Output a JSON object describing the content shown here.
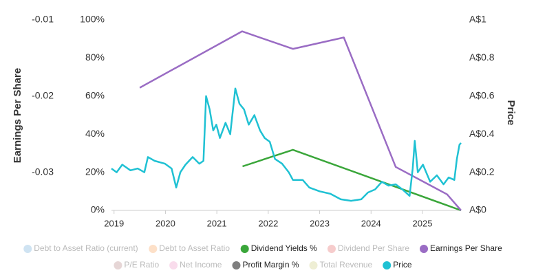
{
  "chart_data": {
    "type": "line",
    "y_title": "Earnings Per Share",
    "y2_title": "Price",
    "xlim": [
      2018.95,
      2025.75
    ],
    "xticks": [
      2019,
      2020,
      2021,
      2022,
      2023,
      2024,
      2025
    ],
    "ylim": [
      -0.035,
      -0.01
    ],
    "yticks": [
      -0.03,
      -0.02,
      -0.01
    ],
    "y3lim": [
      0,
      100
    ],
    "y3ticks": [
      {
        "value": 0,
        "label": "0%"
      },
      {
        "value": 20,
        "label": "20%"
      },
      {
        "value": 40,
        "label": "40%"
      },
      {
        "value": 60,
        "label": "60%"
      },
      {
        "value": 80,
        "label": "80%"
      },
      {
        "value": 100,
        "label": "100%"
      }
    ],
    "y2lim": [
      0,
      1
    ],
    "y2ticks": [
      {
        "value": 0,
        "label": "A$0"
      },
      {
        "value": 0.2,
        "label": "A$0.2"
      },
      {
        "value": 0.4,
        "label": "A$0.4"
      },
      {
        "value": 0.6,
        "label": "A$0.6"
      },
      {
        "value": 0.8,
        "label": "A$0.8"
      },
      {
        "value": 1,
        "label": "A$1"
      }
    ],
    "series": [
      {
        "name": "Debt to Asset Ratio (current)",
        "color": "#cfe3f2",
        "active": false
      },
      {
        "name": "Debt to Asset Ratio",
        "color": "#fde0c8",
        "active": false
      },
      {
        "name": "Dividend Yields %",
        "color": "#3aa63a",
        "active": true,
        "axis": "y3",
        "x": [
          2021.5,
          2022.48,
          2025.75
        ],
        "values": [
          23.1,
          31.8,
          0
        ]
      },
      {
        "name": "Dividend Per Share",
        "color": "#f6cccc",
        "active": false
      },
      {
        "name": "Earnings Per Share",
        "color": "#9a6cc4",
        "active": true,
        "axis": "y",
        "x": [
          2019.5,
          2021.49,
          2022.48,
          2023.47,
          2024.48,
          2025.48,
          2025.75
        ],
        "values": [
          -0.0189,
          -0.0115,
          -0.0138,
          -0.0123,
          -0.0293,
          -0.0329,
          -0.035
        ]
      },
      {
        "name": "P/E Ratio",
        "color": "#e6d6d6",
        "active": false
      },
      {
        "name": "Net Income",
        "color": "#f9dcec",
        "active": false
      },
      {
        "name": "Profit Margin %",
        "color": "#7f7f7f",
        "active": true
      },
      {
        "name": "Total Revenue",
        "color": "#eeeed4",
        "active": false
      },
      {
        "name": "Price",
        "color": "#1fc1d3",
        "active": true,
        "axis": "y2",
        "x": [
          2018.95,
          2019.05,
          2019.16,
          2019.32,
          2019.46,
          2019.59,
          2019.66,
          2019.79,
          2019.99,
          2020.12,
          2020.21,
          2020.29,
          2020.39,
          2020.53,
          2020.66,
          2020.74,
          2020.79,
          2020.86,
          2020.93,
          2020.99,
          2021.06,
          2021.17,
          2021.26,
          2021.36,
          2021.44,
          2021.53,
          2021.62,
          2021.73,
          2021.84,
          2021.93,
          2022.03,
          2022.13,
          2022.27,
          2022.4,
          2022.48,
          2022.67,
          2022.8,
          2023.0,
          2023.21,
          2023.41,
          2023.61,
          2023.81,
          2023.94,
          2024.08,
          2024.21,
          2024.34,
          2024.48,
          2024.61,
          2024.75,
          2024.81,
          2024.85,
          2024.91,
          2025.01,
          2025.15,
          2025.28,
          2025.41,
          2025.51,
          2025.62,
          2025.67,
          2025.72,
          2025.75
        ],
        "values": [
          0.22,
          0.2,
          0.24,
          0.21,
          0.22,
          0.2,
          0.28,
          0.26,
          0.245,
          0.22,
          0.12,
          0.2,
          0.24,
          0.28,
          0.245,
          0.26,
          0.6,
          0.53,
          0.42,
          0.45,
          0.38,
          0.46,
          0.4,
          0.64,
          0.56,
          0.53,
          0.45,
          0.5,
          0.42,
          0.38,
          0.36,
          0.27,
          0.245,
          0.2,
          0.16,
          0.16,
          0.12,
          0.1,
          0.087,
          0.058,
          0.05,
          0.058,
          0.094,
          0.11,
          0.15,
          0.13,
          0.137,
          0.11,
          0.076,
          0.22,
          0.365,
          0.2,
          0.24,
          0.15,
          0.184,
          0.137,
          0.173,
          0.16,
          0.27,
          0.345,
          0.354
        ]
      }
    ]
  }
}
